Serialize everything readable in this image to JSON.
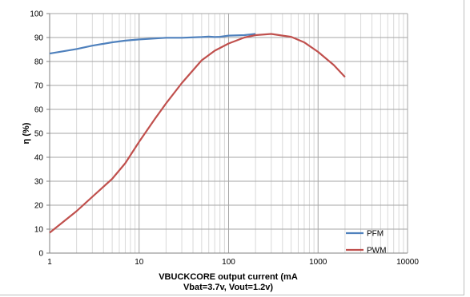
{
  "chart_data": {
    "type": "line",
    "xlabel": "VBUCKCORE  output current (mA",
    "xlabel_line2": "Vbat=3.7v, Vout=1.2v)",
    "ylabel": "η (%)",
    "x_scale": "log",
    "xlim": [
      1,
      10000
    ],
    "ylim": [
      0,
      100
    ],
    "x_ticks": [
      "1",
      "10",
      "100",
      "1000",
      "10000"
    ],
    "y_ticks": [
      "0",
      "10",
      "20",
      "30",
      "40",
      "50",
      "60",
      "70",
      "80",
      "90",
      "100"
    ],
    "grid": true,
    "legend_position": "bottom-right",
    "series": [
      {
        "name": "PFM",
        "color": "#4f81bd",
        "x": [
          1,
          2,
          3,
          5,
          7,
          10,
          20,
          30,
          50,
          60,
          70,
          80,
          100,
          150,
          200
        ],
        "y": [
          83.3,
          85.2,
          86.6,
          88.0,
          88.7,
          89.2,
          89.9,
          89.9,
          90.2,
          90.4,
          90.2,
          90.3,
          90.8,
          91.0,
          91.5
        ]
      },
      {
        "name": "PWM",
        "color": "#c0504d",
        "x": [
          1,
          2,
          3,
          5,
          7,
          10,
          15,
          20,
          30,
          50,
          70,
          100,
          150,
          200,
          300,
          400,
          500,
          700,
          1000,
          1500,
          2000
        ],
        "y": [
          8.5,
          17.5,
          23.5,
          31.0,
          37.5,
          46.5,
          56.0,
          62.5,
          71.0,
          80.5,
          84.5,
          87.5,
          90.0,
          91.0,
          91.5,
          90.8,
          90.3,
          88.0,
          84.0,
          78.5,
          73.5
        ]
      }
    ]
  }
}
